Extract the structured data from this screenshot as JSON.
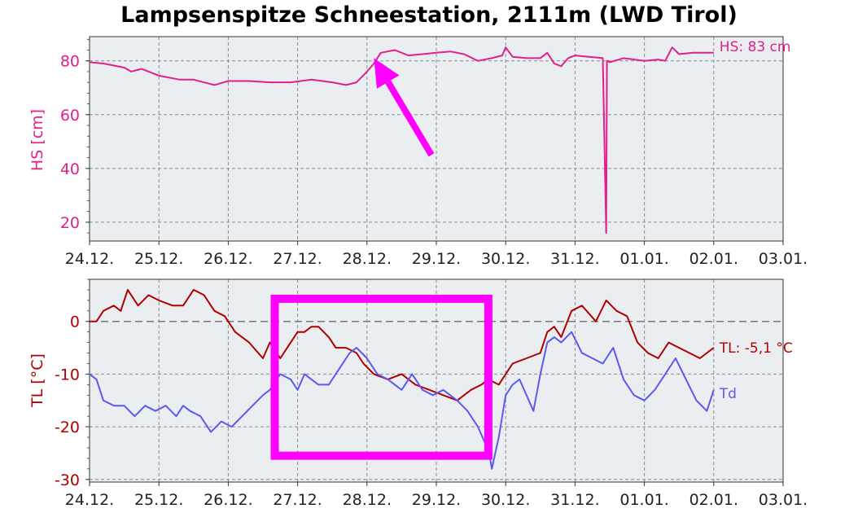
{
  "chart_data": [
    {
      "type": "line",
      "title": "Lampsenspitze Schneestation, 2111m (LWD Tirol)",
      "ylabel": "HS [cm]",
      "ylim": [
        13,
        89
      ],
      "yticks": [
        20,
        40,
        60,
        80
      ],
      "x_ticks": [
        "24.12.",
        "25.12.",
        "26.12.",
        "27.12.",
        "28.12.",
        "29.12.",
        "30.12.",
        "31.12.",
        "01.01.",
        "02.01.",
        "03.01."
      ],
      "xlim": [
        0,
        10
      ],
      "grid": true,
      "series": [
        {
          "name": "HS",
          "color": "#e0208c",
          "label": "HS: 83 cm",
          "x": [
            0,
            0.2,
            0.5,
            0.6,
            0.75,
            1.0,
            1.3,
            1.5,
            1.8,
            2.0,
            2.3,
            2.6,
            2.9,
            3.2,
            3.5,
            3.7,
            3.85,
            4.0,
            4.1,
            4.2,
            4.4,
            4.6,
            4.8,
            5.0,
            5.2,
            5.4,
            5.6,
            5.8,
            5.95,
            6.0,
            6.1,
            6.3,
            6.5,
            6.6,
            6.7,
            6.8,
            6.9,
            7.0,
            7.2,
            7.4,
            7.45,
            7.46,
            7.47,
            7.5,
            7.7,
            8.0,
            8.2,
            8.3,
            8.4,
            8.5,
            8.7,
            8.9,
            9.0
          ],
          "values": [
            79.5,
            79,
            77.5,
            76,
            77,
            74.5,
            73,
            73,
            71,
            72.5,
            72.5,
            72,
            72,
            73,
            72,
            71,
            72,
            76,
            79,
            83,
            84,
            82,
            82.5,
            83,
            83.5,
            82.5,
            80,
            81,
            82,
            85,
            81.5,
            81,
            81,
            83,
            79,
            78,
            81,
            82,
            81.5,
            81,
            16,
            80,
            80,
            79.5,
            81,
            80,
            80.5,
            80,
            85,
            82.5,
            83,
            83,
            83
          ]
        }
      ],
      "annotations": [
        {
          "type": "arrow",
          "color": "#ff00ff",
          "from": [
            4.93,
            45
          ],
          "to": [
            4.1,
            81
          ]
        }
      ]
    },
    {
      "type": "line",
      "ylabel": "TL [°C]",
      "ylim": [
        -30.5,
        8
      ],
      "yticks": [
        -30,
        -20,
        -10,
        0
      ],
      "x_ticks": [
        "24.12.",
        "25.12.",
        "26.12.",
        "27.12.",
        "28.12.",
        "29.12.",
        "30.12.",
        "31.12.",
        "01.01.",
        "02.01.",
        "03.01."
      ],
      "xlim": [
        0,
        10
      ],
      "grid": true,
      "zero_line": true,
      "series": [
        {
          "name": "TL",
          "color": "#b00000",
          "label": "TL: -5,1 °C",
          "x": [
            0,
            0.1,
            0.2,
            0.35,
            0.45,
            0.55,
            0.7,
            0.85,
            1.0,
            1.2,
            1.35,
            1.5,
            1.65,
            1.8,
            1.95,
            2.1,
            2.3,
            2.5,
            2.6,
            2.75,
            2.9,
            3.0,
            3.1,
            3.2,
            3.3,
            3.45,
            3.55,
            3.7,
            3.85,
            3.95,
            4.1,
            4.3,
            4.5,
            4.7,
            4.9,
            5.1,
            5.3,
            5.5,
            5.65,
            5.75,
            5.9,
            6.0,
            6.1,
            6.3,
            6.5,
            6.6,
            6.7,
            6.8,
            6.95,
            7.1,
            7.3,
            7.45,
            7.6,
            7.75,
            7.9,
            8.05,
            8.2,
            8.35,
            8.5,
            8.65,
            8.8,
            8.9,
            9.0
          ],
          "values": [
            0,
            0,
            2,
            3,
            2,
            6,
            3,
            5,
            4,
            3,
            3,
            6,
            5,
            2,
            1,
            -2,
            -4,
            -7,
            -4,
            -7,
            -4,
            -2,
            -2,
            -1,
            -1,
            -3,
            -5,
            -5,
            -6,
            -8,
            -10,
            -11,
            -10,
            -12,
            -13,
            -14,
            -15,
            -13,
            -12,
            -11,
            -12,
            -10,
            -8,
            -7,
            -6,
            -2,
            -1,
            -3,
            2,
            3,
            0,
            4,
            2,
            1,
            -4,
            -6,
            -7,
            -4,
            -5,
            -6,
            -7,
            -6,
            -5
          ]
        },
        {
          "name": "Td",
          "color": "#5a5aee",
          "label": "Td",
          "x": [
            0,
            0.1,
            0.2,
            0.35,
            0.5,
            0.65,
            0.8,
            0.95,
            1.1,
            1.25,
            1.35,
            1.45,
            1.6,
            1.75,
            1.9,
            2.05,
            2.2,
            2.35,
            2.5,
            2.6,
            2.75,
            2.9,
            3.0,
            3.1,
            3.2,
            3.3,
            3.45,
            3.6,
            3.75,
            3.85,
            4.0,
            4.15,
            4.3,
            4.5,
            4.65,
            4.8,
            4.95,
            5.1,
            5.3,
            5.45,
            5.6,
            5.7,
            5.75,
            5.8,
            5.9,
            6.0,
            6.1,
            6.2,
            6.3,
            6.4,
            6.5,
            6.6,
            6.7,
            6.8,
            6.95,
            7.1,
            7.25,
            7.4,
            7.55,
            7.7,
            7.85,
            8.0,
            8.15,
            8.3,
            8.45,
            8.6,
            8.75,
            8.9,
            9.0
          ],
          "values": [
            -10,
            -11,
            -15,
            -16,
            -16,
            -18,
            -16,
            -17,
            -16,
            -18,
            -16,
            -17,
            -18,
            -21,
            -19,
            -20,
            -18,
            -16,
            -14,
            -13,
            -10,
            -11,
            -13,
            -10,
            -11,
            -12,
            -12,
            -9,
            -6,
            -5,
            -7,
            -10,
            -11,
            -13,
            -10,
            -13,
            -14,
            -13,
            -15,
            -17,
            -20,
            -23,
            -24,
            -28,
            -22,
            -14,
            -12,
            -11,
            -14,
            -17,
            -10,
            -4,
            -3,
            -4,
            -2,
            -6,
            -7,
            -8,
            -5,
            -11,
            -14,
            -15,
            -13,
            -10,
            -7,
            -11,
            -15,
            -17,
            -13
          ]
        }
      ],
      "annotations": [
        {
          "type": "rectangle",
          "color": "#ff00ff",
          "x0": 2.67,
          "x1": 5.75,
          "y0": -25.5,
          "y1": 4.3
        }
      ]
    }
  ]
}
